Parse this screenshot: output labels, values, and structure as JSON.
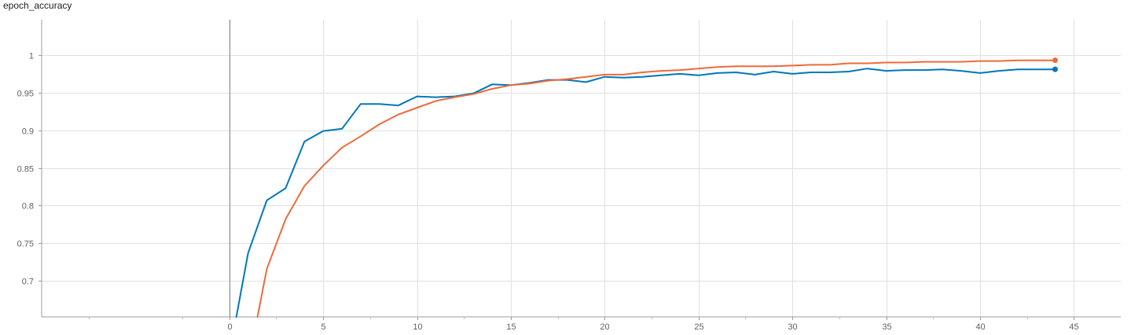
{
  "chart_data": {
    "type": "line",
    "title": "epoch_accuracy",
    "xlabel": "",
    "ylabel": "",
    "xlim": [
      -10,
      47.5
    ],
    "ylim": [
      0.652,
      1.047
    ],
    "x_ticks": [
      0,
      5,
      10,
      15,
      20,
      25,
      30,
      35,
      40,
      45
    ],
    "y_ticks": [
      0.7,
      0.75,
      0.8,
      0.85,
      0.9,
      0.95,
      1
    ],
    "x_tick_labels": [
      "0",
      "5",
      "10",
      "15",
      "20",
      "25",
      "30",
      "35",
      "40",
      "45"
    ],
    "y_tick_labels": [
      "0.7",
      "0.75",
      "0.8",
      "0.85",
      "0.9",
      "0.95",
      "1"
    ],
    "vline_x": 0,
    "grid": true,
    "series": [
      {
        "color": "#0077bb",
        "x": [
          0.375,
          1,
          2,
          3,
          4,
          5,
          6,
          7,
          8,
          9,
          10,
          11,
          12,
          13,
          14,
          15,
          16,
          17,
          18,
          19,
          20,
          21,
          22,
          23,
          24,
          25,
          26,
          27,
          28,
          29,
          30,
          31,
          32,
          33,
          34,
          35,
          36,
          37,
          38,
          39,
          40,
          41,
          42,
          43,
          44
        ],
        "values": [
          0.652,
          0.737,
          0.807,
          0.823,
          0.885,
          0.899,
          0.902,
          0.935,
          0.935,
          0.933,
          0.945,
          0.944,
          0.945,
          0.949,
          0.961,
          0.96,
          0.963,
          0.967,
          0.967,
          0.964,
          0.971,
          0.97,
          0.971,
          0.973,
          0.975,
          0.973,
          0.976,
          0.977,
          0.974,
          0.978,
          0.975,
          0.977,
          0.977,
          0.978,
          0.982,
          0.979,
          0.98,
          0.98,
          0.981,
          0.979,
          0.976,
          0.979,
          0.981,
          0.981,
          0.981
        ]
      },
      {
        "color": "#ee6a3a",
        "x": [
          1.5,
          2,
          3,
          4,
          5,
          6,
          7,
          8,
          9,
          10,
          11,
          12,
          13,
          14,
          15,
          16,
          17,
          18,
          19,
          20,
          21,
          22,
          23,
          24,
          25,
          26,
          27,
          28,
          29,
          30,
          31,
          32,
          33,
          34,
          35,
          36,
          37,
          38,
          39,
          40,
          41,
          42,
          43,
          44
        ],
        "values": [
          0.652,
          0.716,
          0.782,
          0.826,
          0.853,
          0.877,
          0.892,
          0.908,
          0.921,
          0.93,
          0.939,
          0.944,
          0.948,
          0.955,
          0.96,
          0.962,
          0.966,
          0.968,
          0.971,
          0.974,
          0.974,
          0.977,
          0.979,
          0.98,
          0.982,
          0.984,
          0.985,
          0.985,
          0.985,
          0.986,
          0.987,
          0.987,
          0.989,
          0.989,
          0.99,
          0.99,
          0.991,
          0.991,
          0.991,
          0.992,
          0.992,
          0.993,
          0.993,
          0.993
        ]
      }
    ]
  }
}
